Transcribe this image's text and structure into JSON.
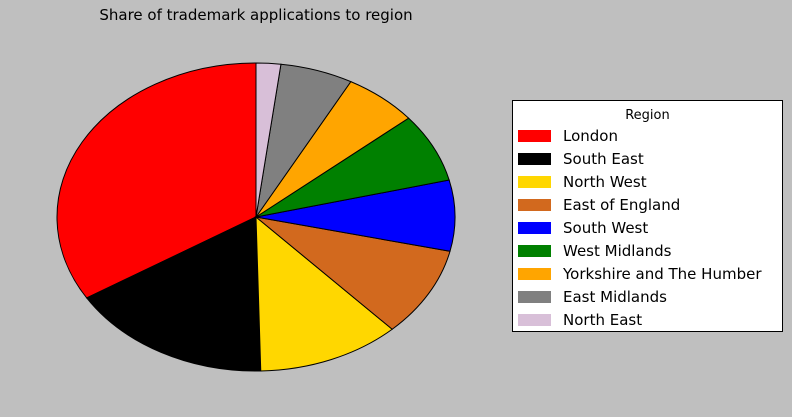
{
  "chart_data": {
    "type": "pie",
    "title": "Share of trademark applications to region",
    "legend_title": "Region",
    "legend_position": "right",
    "slices": [
      {
        "label": "London",
        "value": 35.5,
        "color": "#ff0000"
      },
      {
        "label": "South East",
        "value": 17.4,
        "color": "#000000"
      },
      {
        "label": "North West",
        "value": 12.2,
        "color": "#ffd700"
      },
      {
        "label": "East of England",
        "value": 9.9,
        "color": "#d2691e"
      },
      {
        "label": "South West",
        "value": 7.8,
        "color": "#0000ff"
      },
      {
        "label": "West Midlands",
        "value": 7.6,
        "color": "#008000"
      },
      {
        "label": "Yorkshire and The Humber",
        "value": 6.3,
        "color": "#ffa500"
      },
      {
        "label": "East Midlands",
        "value": 6.2,
        "color": "#808080"
      },
      {
        "label": "North East",
        "value": 2.1,
        "color": "#d8bfd8"
      }
    ]
  }
}
